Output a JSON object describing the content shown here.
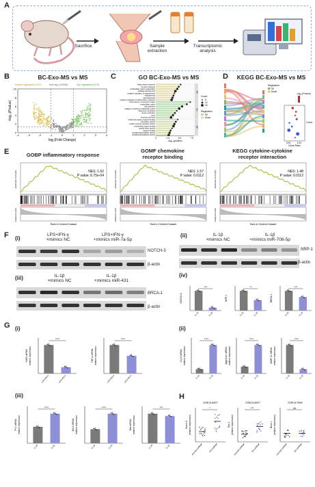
{
  "panelA": {
    "label": "A",
    "steps": [
      "Sacrifice",
      "Sample\nextraction",
      "Transcriptomic\nanalysis"
    ]
  },
  "panelB": {
    "label": "B",
    "title": "BC-Exo-MS vs MS",
    "legend": {
      "down": "Down regulated (237)",
      "notsig": "Not sig (13809)",
      "up": "Up regulated (272)"
    },
    "xlabel": "log₂(Fold Change)",
    "ylabel": "-log₁₀(Pvalue)",
    "xticks": [
      "-4",
      "-3",
      "-2",
      "-1",
      "0",
      "1",
      "2",
      "3",
      "4"
    ],
    "yticks": [
      "0",
      "2",
      "4",
      "6",
      "8",
      "10"
    ],
    "colors": {
      "down": "#e3c86b",
      "notsig": "#9a9a9a",
      "up": "#8fd07a"
    }
  },
  "panelC": {
    "label": "C",
    "title": "GO  BC-Exo-MS vs MS",
    "terms": [
      "inflammatory response",
      "immune response",
      "extracellular matrix organization",
      "cartilage development",
      "negative regulation of angiogenesis",
      "angiogenesis",
      "vasculogenesis",
      "negative regulation of inflammatory response",
      "chromosome, centromeric region",
      "extracellular matrix",
      "cell projection",
      "collagen-containing extracellular matrix",
      "basement membrane",
      "neuron projection",
      "axon",
      "neuronal cell body",
      "CCR4 chemokine receptor binding",
      "chemokine activity",
      "sodium channel regulator activity",
      "extracellular matrix binding",
      "growth factor activity",
      "heparin binding",
      "metalloendopeptidase activity",
      "metalloendopeptidase activity"
    ],
    "values": [
      5.2,
      4.8,
      4.5,
      4.1,
      3.9,
      3.7,
      3.5,
      3.3,
      7.2,
      6.5,
      5.5,
      4.9,
      4.4,
      4.0,
      3.6,
      3.2,
      4.6,
      4.2,
      3.9,
      3.7,
      3.4,
      3.1,
      2.9,
      2.7
    ],
    "groups": [
      "BP",
      "CC",
      "MF"
    ],
    "xlabel": "-log₁₀(pvalue)",
    "xticks": [
      "0",
      "2.5",
      "5.0",
      "7.5"
    ],
    "legend_count": "Count",
    "legend_count_values": [
      "5",
      "10",
      "15"
    ],
    "legend_regulation": "Regulation",
    "legend_regulation_values": [
      "Up",
      "Down"
    ],
    "colors": {
      "BP": "#e9ddb0",
      "CC": "#b8dcb0",
      "MF": "#d8e0b0",
      "dot": "#222222"
    }
  },
  "panelD": {
    "label": "D",
    "title": "KEGG  BC-Exo-MS vs MS",
    "legend_regulation": "Regulation",
    "legend_regulation_values": [
      "Up",
      "Down"
    ],
    "legend_p": "-log₁₀(Pvalue)",
    "legend_count": "Count",
    "xlabel": "Gene Ratio",
    "xticks": [
      "0.05",
      "0.10"
    ]
  },
  "panelE": {
    "label": "E",
    "plots": [
      {
        "title": "GOBP inflammatory response",
        "nes": "NES: 1.62",
        "p": "P value: 6.75e-04"
      },
      {
        "title": "GOMF chemokine\nreceptor binding",
        "nes": "NES: 1.57",
        "p": "P value: 0.0112"
      },
      {
        "title": "KEGG cytokine-cytokine\nreceptor interaction",
        "nes": "NES: 1.48",
        "p": "P value: 0.0112"
      }
    ],
    "xlabel": "Rank in Ordered Dataset",
    "ylabel": "Enrichment Score (ES)",
    "ylabel2": "Ranked list metric"
  },
  "panelF": {
    "label": "F",
    "i": {
      "label": "(i)",
      "groups": [
        "LPS+IFN-γ\n+mimics NC",
        "LPS+IFN-γ\n+mimics miR-7a-5p"
      ],
      "bands": [
        "NOTCH-3",
        "β-actin"
      ]
    },
    "ii": {
      "label": "(ii)",
      "groups": [
        "IL-1β\n+mimics NC",
        "IL-1β\n+mimics miR-708-5p"
      ],
      "bands": [
        "NRP-1",
        "β-actin"
      ]
    },
    "iii": {
      "label": "(iii)",
      "groups": [
        "IL-1β\n+mimics NC",
        "IL-1β\n+mimics miR-431"
      ],
      "bands": [
        "BRCA-1",
        "β-actin"
      ]
    },
    "iv": {
      "label": "(iv)",
      "charts": [
        {
          "ylabel": "NOTCH-3",
          "values": [
            0.82,
            0.12
          ],
          "sig": "***"
        },
        {
          "ylabel": "NRP-1",
          "values": [
            0.85,
            0.45
          ],
          "sig": "**"
        },
        {
          "ylabel": "BRCA-1",
          "values": [
            1.05,
            0.72
          ],
          "sig": "***"
        }
      ]
    }
  },
  "panelG": {
    "label": "G",
    "i": {
      "label": "(i)",
      "charts": [
        {
          "ylabel": "iNOS mRNA\nrelative expression",
          "values": [
            1.0,
            0.22
          ],
          "sig": "****"
        },
        {
          "ylabel": "TNF-α mRNA\nrelative expression",
          "values": [
            1.0,
            0.62
          ],
          "sig": "****"
        }
      ]
    },
    "ii": {
      "label": "(ii)",
      "charts": [
        {
          "ylabel": "Col-II mRNA\nrelative expression",
          "values": [
            1.0,
            6.5
          ],
          "sig": "****"
        },
        {
          "ylabel": "Aggrecan mRNA\nrelative expression",
          "values": [
            1.0,
            4.2
          ],
          "sig": "****"
        },
        {
          "ylabel": "MMP-13 mRNA\nrelative expression",
          "values": [
            1.0,
            0.15
          ],
          "sig": "****"
        }
      ]
    },
    "iii": {
      "label": "(iii)",
      "charts": [
        {
          "ylabel": "PI-1 mRNA\nrelative expression",
          "values": [
            1.0,
            1.8
          ],
          "sig": "****"
        },
        {
          "ylabel": "Bcl-2 mRNA\nrelative expression",
          "values": [
            1.0,
            2.1
          ],
          "sig": "****"
        },
        {
          "ylabel": "Bax mRNA\nrelative expression",
          "values": [
            1.0,
            0.92
          ],
          "sig": "***"
        }
      ]
    },
    "xcats_i": [
      "LPS+IFN-γ\n+mimics NC",
      "LPS+IFN-γ\n+mimics miR-7a-5p"
    ],
    "xcats": [
      "IL-1β\n+mimics NC",
      "IL-1β\n+mimics miR"
    ]
  },
  "panelH": {
    "label": "H",
    "charts": [
      {
        "title": "GSE114007",
        "ylabel": "Notch-3\n(relative expression)",
        "cats": [
          "Normal cartilage",
          "OA cartilage"
        ],
        "means": [
          1.2,
          2.4
        ],
        "sig": "*"
      },
      {
        "title": "GSE114007",
        "ylabel": "Nrp-1\n(relative expression)",
        "cats": [
          "Normal cartilage",
          "OA cartilage"
        ],
        "means": [
          0.9,
          1.8
        ],
        "sig": "***"
      },
      {
        "title": "GSE117999",
        "ylabel": "Brca-1\n(relative expression)",
        "cats": [
          "Normal cartilage",
          "OA cartilage"
        ],
        "means": [
          1.0,
          1.0
        ],
        "sig": "ns"
      }
    ]
  },
  "colors": {
    "bar_gray": "#7a7a7a",
    "bar_purple": "#8e8fd6",
    "gsea_line": "#9cc23a"
  }
}
